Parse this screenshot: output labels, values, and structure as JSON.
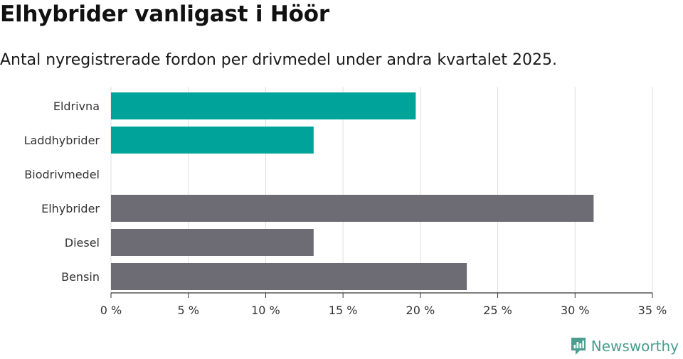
{
  "title": "Elhybrider vanligast i Höör",
  "subtitle": "Antal nyregistrerade fordon per drivmedel under andra kvartalet 2025.",
  "brand": {
    "name": "Newsworthy",
    "logo_icon": "bar-chart-logo-icon",
    "color": "#4a9d8f"
  },
  "chart_data": {
    "type": "bar",
    "orientation": "horizontal",
    "title": "Elhybrider vanligast i Höör",
    "subtitle": "Antal nyregistrerade fordon per drivmedel under andra kvartalet 2025.",
    "xlabel": "",
    "ylabel": "",
    "categories": [
      "Eldrivna",
      "Laddhybrider",
      "Biodrivmedel",
      "Elhybrider",
      "Diesel",
      "Bensin"
    ],
    "values": [
      19.7,
      13.1,
      0,
      31.2,
      13.1,
      23.0
    ],
    "colors": [
      "#00a39a",
      "#00a39a",
      "#00a39a",
      "#6d6b73",
      "#6d6b73",
      "#6d6b73"
    ],
    "xlim": [
      0,
      35
    ],
    "xticks": [
      0,
      5,
      10,
      15,
      20,
      25,
      30,
      35
    ],
    "xtick_labels": [
      "0 %",
      "5 %",
      "10 %",
      "15 %",
      "20 %",
      "25 %",
      "30 %",
      "35 %"
    ],
    "grid": "vertical",
    "legend": "none"
  }
}
